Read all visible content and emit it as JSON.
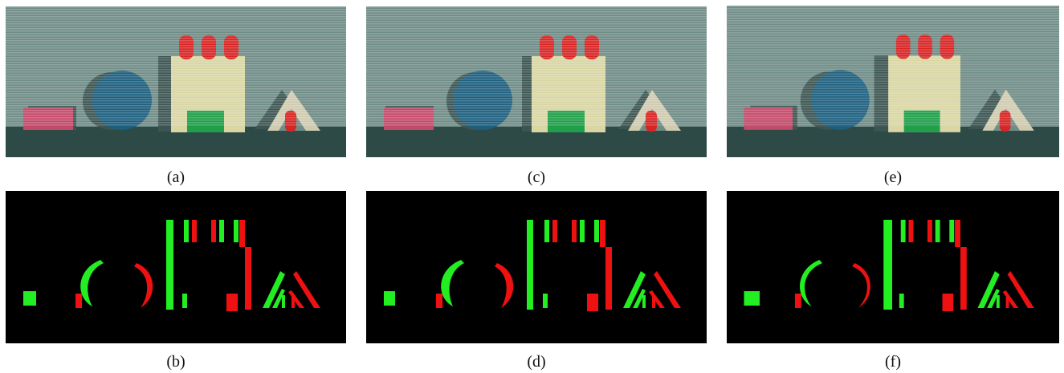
{
  "captions": {
    "a": "(a)",
    "b": "(b)",
    "c": "(c)",
    "d": "(d)",
    "e": "(e)",
    "f": "(f)"
  },
  "colors": {
    "mask_background": "#000000",
    "mask_green": "#22ee22",
    "mask_red": "#ee1111",
    "scene_wall": "#6f8c86",
    "scene_floor": "#2e4a47",
    "ball": "#1d5f7f",
    "box_yellow": "#d9d6a4",
    "block_green": "#1f9f4a",
    "block_pink": "#c44a6a",
    "caps_red": "#d92424"
  }
}
